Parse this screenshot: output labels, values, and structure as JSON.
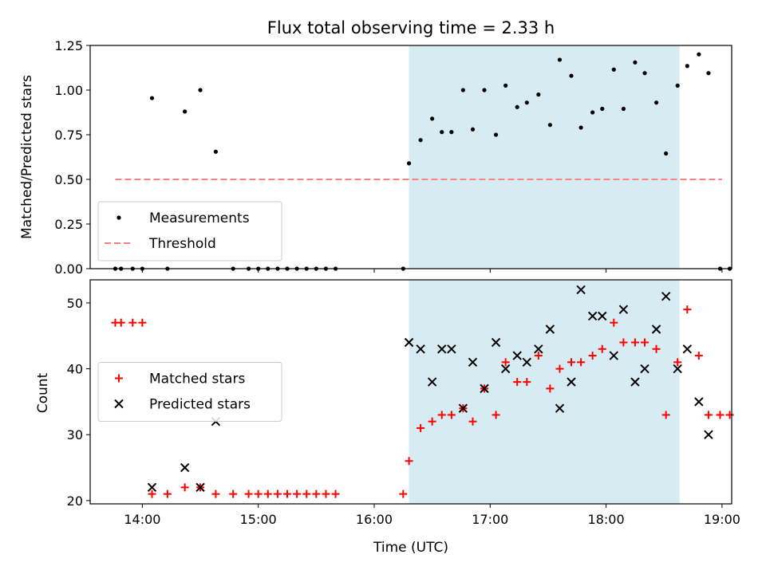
{
  "chart_data": [
    {
      "type": "scatter",
      "title": "Flux total observing time = 2.33 h",
      "xlabel": "",
      "ylabel": "Matched/Predicted stars",
      "xlim": [
        "13:33",
        "19:05"
      ],
      "ylim": [
        0,
        1.25
      ],
      "yticks": [
        0,
        0.25,
        0.5,
        0.75,
        1.0,
        1.25
      ],
      "ytick_labels": [
        "0.00",
        "0.25",
        "0.50",
        "0.75",
        "1.00",
        "1.25"
      ],
      "shaded_region": {
        "x": [
          "16:18",
          "18:38"
        ],
        "color": "#add8e6"
      },
      "legend": {
        "position": "lower left"
      },
      "series": [
        {
          "name": "Measurements",
          "kind": "scatter",
          "marker": "dot",
          "color": "#000000",
          "points": [
            [
              "13:46",
              0.0
            ],
            [
              "13:49",
              0.0
            ],
            [
              "13:55",
              0.0
            ],
            [
              "14:00",
              0.0
            ],
            [
              "14:05",
              0.955
            ],
            [
              "14:13",
              0.0
            ],
            [
              "14:22",
              0.88
            ],
            [
              "14:30",
              1.0
            ],
            [
              "14:38",
              0.655
            ],
            [
              "14:47",
              0.0
            ],
            [
              "14:55",
              0.0
            ],
            [
              "15:00",
              0.0
            ],
            [
              "15:05",
              0.0
            ],
            [
              "15:10",
              0.0
            ],
            [
              "15:15",
              0.0
            ],
            [
              "15:20",
              0.0
            ],
            [
              "15:25",
              0.0
            ],
            [
              "15:30",
              0.0
            ],
            [
              "15:35",
              0.0
            ],
            [
              "15:40",
              0.0
            ],
            [
              "16:15",
              0.0
            ],
            [
              "16:18",
              0.59
            ],
            [
              "16:24",
              0.72
            ],
            [
              "16:30",
              0.84
            ],
            [
              "16:35",
              0.765
            ],
            [
              "16:40",
              0.765
            ],
            [
              "16:46",
              1.0
            ],
            [
              "16:51",
              0.78
            ],
            [
              "16:57",
              1.0
            ],
            [
              "17:03",
              0.75
            ],
            [
              "17:08",
              1.025
            ],
            [
              "17:14",
              0.905
            ],
            [
              "17:19",
              0.93
            ],
            [
              "17:25",
              0.975
            ],
            [
              "17:31",
              0.805
            ],
            [
              "17:36",
              1.17
            ],
            [
              "17:42",
              1.08
            ],
            [
              "17:47",
              0.79
            ],
            [
              "17:53",
              0.875
            ],
            [
              "17:58",
              0.895
            ],
            [
              "18:04",
              1.115
            ],
            [
              "18:09",
              0.895
            ],
            [
              "18:15",
              1.155
            ],
            [
              "18:20",
              1.095
            ],
            [
              "18:26",
              0.93
            ],
            [
              "18:31",
              0.645
            ],
            [
              "18:37",
              1.025
            ],
            [
              "18:42",
              1.135
            ],
            [
              "18:48",
              1.2
            ],
            [
              "18:53",
              1.095
            ],
            [
              "18:59",
              0.0
            ],
            [
              "19:04",
              0.0
            ]
          ]
        },
        {
          "name": "Threshold",
          "kind": "line",
          "style": "dashed",
          "color": "#ff7f7f",
          "points": [
            [
              "13:46",
              0.5
            ],
            [
              "19:00",
              0.5
            ]
          ]
        }
      ]
    },
    {
      "type": "scatter",
      "title": "",
      "xlabel": "Time (UTC)",
      "ylabel": "Count",
      "xlim": [
        "13:33",
        "19:05"
      ],
      "ylim": [
        19.5,
        53.5
      ],
      "yticks": [
        20,
        30,
        40,
        50
      ],
      "ytick_labels": [
        "20",
        "30",
        "40",
        "50"
      ],
      "xticks": [
        "14:00",
        "15:00",
        "16:00",
        "17:00",
        "18:00",
        "19:00"
      ],
      "xtick_labels": [
        "14:00",
        "15:00",
        "16:00",
        "17:00",
        "18:00",
        "19:00"
      ],
      "shaded_region": {
        "x": [
          "16:18",
          "18:38"
        ],
        "color": "#add8e6"
      },
      "legend": {
        "position": "center left"
      },
      "series": [
        {
          "name": "Matched stars",
          "kind": "scatter",
          "marker": "plus",
          "color": "#ff0000",
          "points": [
            [
              "13:46",
              47
            ],
            [
              "13:49",
              47
            ],
            [
              "13:55",
              47
            ],
            [
              "14:00",
              47
            ],
            [
              "14:05",
              21
            ],
            [
              "14:13",
              21
            ],
            [
              "14:22",
              22
            ],
            [
              "14:30",
              22
            ],
            [
              "14:38",
              21
            ],
            [
              "14:47",
              21
            ],
            [
              "14:55",
              21
            ],
            [
              "15:00",
              21
            ],
            [
              "15:05",
              21
            ],
            [
              "15:10",
              21
            ],
            [
              "15:15",
              21
            ],
            [
              "15:20",
              21
            ],
            [
              "15:25",
              21
            ],
            [
              "15:30",
              21
            ],
            [
              "15:35",
              21
            ],
            [
              "15:40",
              21
            ],
            [
              "16:15",
              21
            ],
            [
              "16:18",
              26
            ],
            [
              "16:24",
              31
            ],
            [
              "16:30",
              32
            ],
            [
              "16:35",
              33
            ],
            [
              "16:40",
              33
            ],
            [
              "16:46",
              34
            ],
            [
              "16:51",
              32
            ],
            [
              "16:57",
              37
            ],
            [
              "17:03",
              33
            ],
            [
              "17:08",
              41
            ],
            [
              "17:14",
              38
            ],
            [
              "17:19",
              38
            ],
            [
              "17:25",
              42
            ],
            [
              "17:31",
              37
            ],
            [
              "17:36",
              40
            ],
            [
              "17:42",
              41
            ],
            [
              "17:47",
              41
            ],
            [
              "17:53",
              42
            ],
            [
              "17:58",
              43
            ],
            [
              "18:04",
              47
            ],
            [
              "18:09",
              44
            ],
            [
              "18:15",
              44
            ],
            [
              "18:20",
              44
            ],
            [
              "18:26",
              43
            ],
            [
              "18:31",
              33
            ],
            [
              "18:37",
              41
            ],
            [
              "18:42",
              49
            ],
            [
              "18:48",
              42
            ],
            [
              "18:53",
              33
            ],
            [
              "18:59",
              33
            ],
            [
              "19:04",
              33
            ]
          ]
        },
        {
          "name": "Predicted stars",
          "kind": "scatter",
          "marker": "x",
          "color": "#000000",
          "points": [
            [
              "14:05",
              22
            ],
            [
              "14:22",
              25
            ],
            [
              "14:30",
              22
            ],
            [
              "14:38",
              32
            ],
            [
              "16:18",
              44
            ],
            [
              "16:24",
              43
            ],
            [
              "16:30",
              38
            ],
            [
              "16:35",
              43
            ],
            [
              "16:40",
              43
            ],
            [
              "16:46",
              34
            ],
            [
              "16:51",
              41
            ],
            [
              "16:57",
              37
            ],
            [
              "17:03",
              44
            ],
            [
              "17:08",
              40
            ],
            [
              "17:14",
              42
            ],
            [
              "17:19",
              41
            ],
            [
              "17:25",
              43
            ],
            [
              "17:31",
              46
            ],
            [
              "17:36",
              34
            ],
            [
              "17:42",
              38
            ],
            [
              "17:47",
              52
            ],
            [
              "17:53",
              48
            ],
            [
              "17:58",
              48
            ],
            [
              "18:04",
              42
            ],
            [
              "18:09",
              49
            ],
            [
              "18:15",
              38
            ],
            [
              "18:20",
              40
            ],
            [
              "18:26",
              46
            ],
            [
              "18:31",
              51
            ],
            [
              "18:37",
              40
            ],
            [
              "18:42",
              43
            ],
            [
              "18:48",
              35
            ],
            [
              "18:53",
              30
            ]
          ]
        }
      ]
    }
  ]
}
